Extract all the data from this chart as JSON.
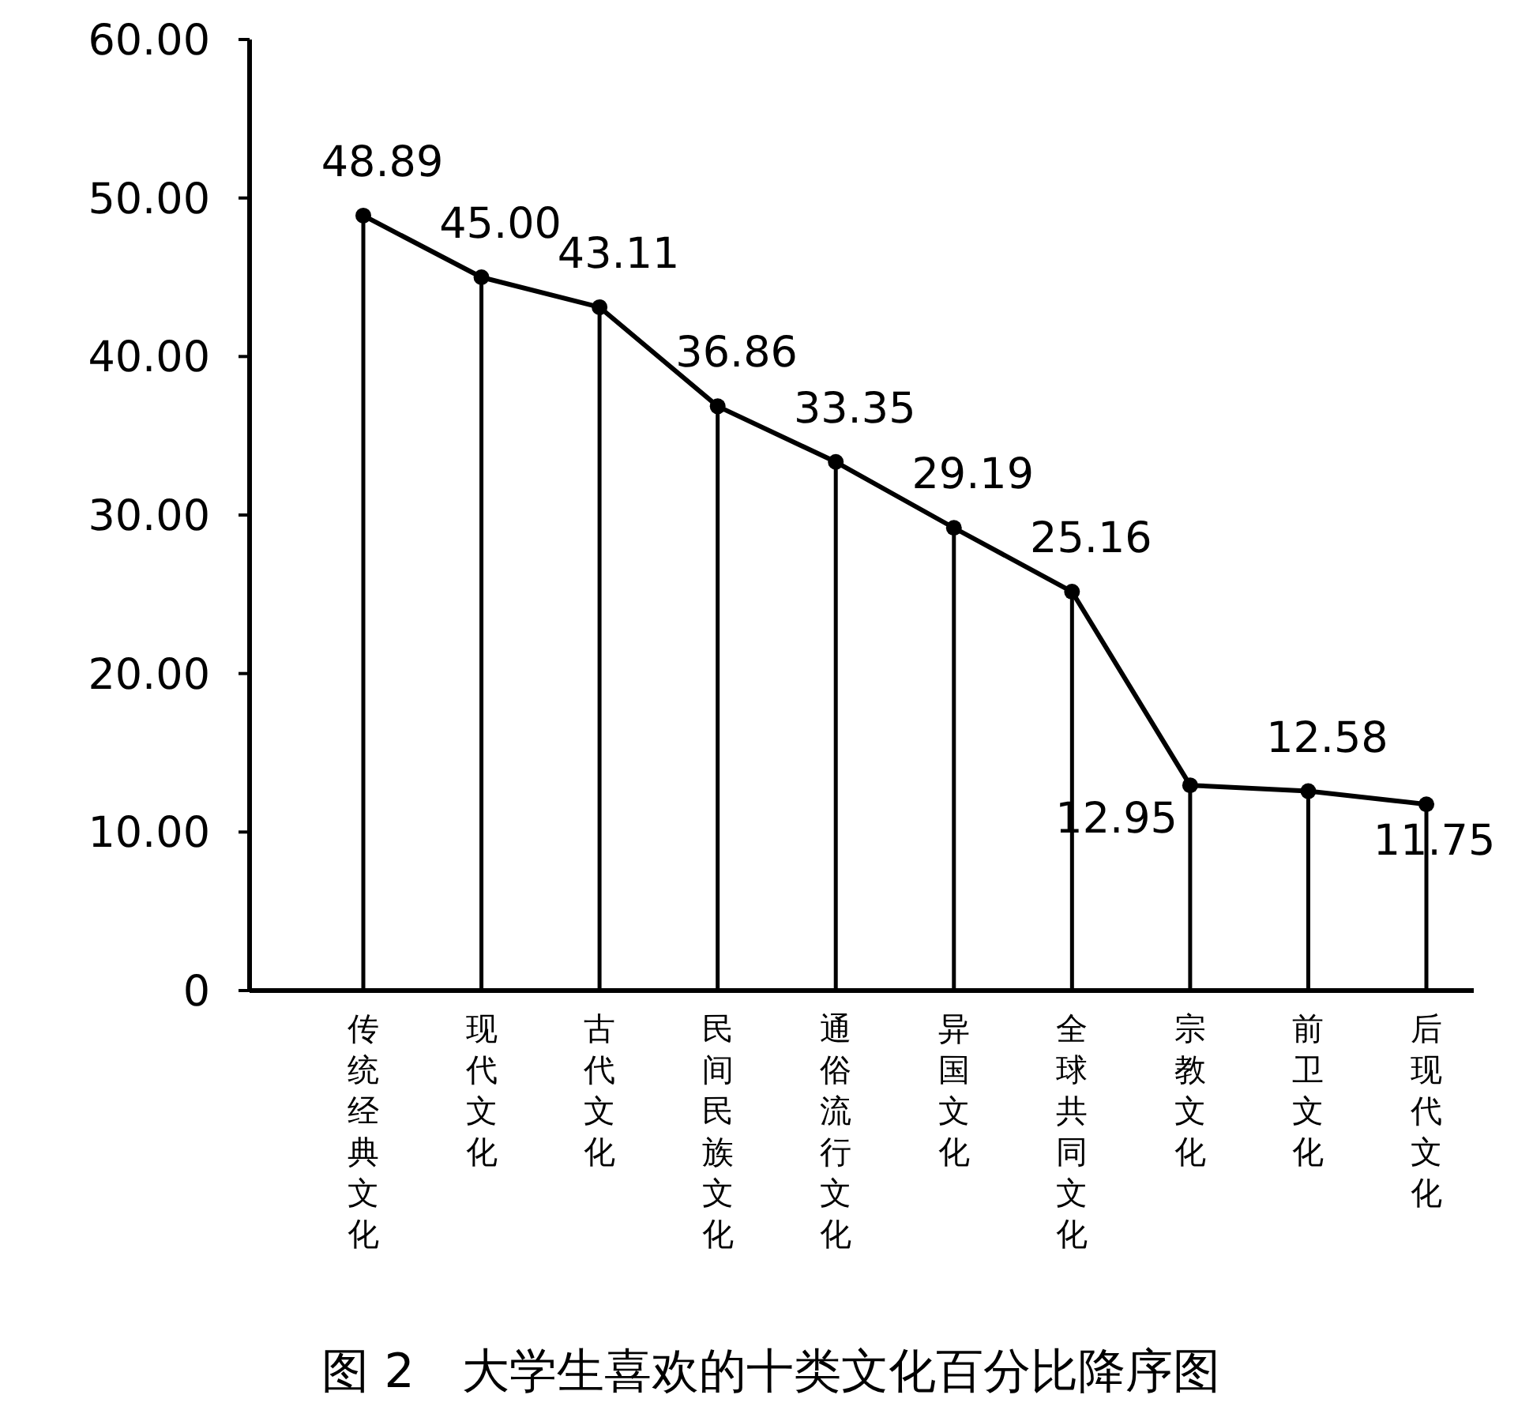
{
  "chart_data": {
    "type": "line",
    "title": "图 2　大学生喜欢的十类文化百分比降序图",
    "categories": [
      "传统经典文化",
      "现代文化",
      "古代文化",
      "民间民族文化",
      "通俗流行文化",
      "异国文化",
      "全球共同文化",
      "宗教文化",
      "前卫文化",
      "后现代文化"
    ],
    "series": [
      {
        "color": "#000000",
        "values": [
          48.89,
          45.0,
          43.11,
          36.86,
          33.35,
          29.19,
          25.16,
          12.95,
          12.58,
          11.75
        ]
      }
    ],
    "value_labels": [
      "48.89",
      "45.00",
      "43.11",
      "36.86",
      "33.35",
      "29.19",
      "25.16",
      "12.95",
      "12.58",
      "11.75"
    ],
    "ylim": [
      0,
      60
    ],
    "yticks": [
      {
        "value": 0,
        "label": "0"
      },
      {
        "value": 10,
        "label": "10.00"
      },
      {
        "value": 20,
        "label": "20.00"
      },
      {
        "value": 30,
        "label": "30.00"
      },
      {
        "value": 40,
        "label": "40.00"
      },
      {
        "value": 50,
        "label": "50.00"
      },
      {
        "value": 60,
        "label": "60.00"
      }
    ],
    "grid": "x",
    "marker": "circle",
    "line_style": "solid"
  }
}
